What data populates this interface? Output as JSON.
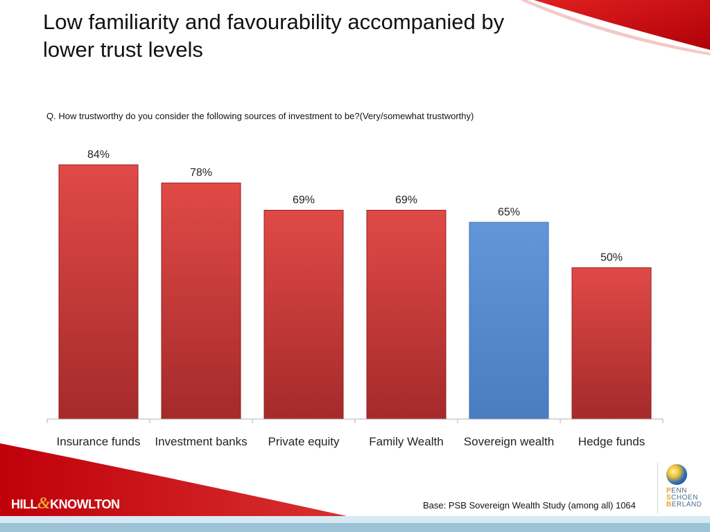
{
  "slide": {
    "title": "Low familiarity and favourability accompanied by lower trust levels",
    "question": "Q. How trustworthy do you consider the following sources of investment to be?(Very/somewhat trustworthy)",
    "base_note": "Base: PSB Sovereign Wealth Study (among all) 1064"
  },
  "logos": {
    "left": {
      "part1": "HILL",
      "amp": "&",
      "part2": "KNOWLTON"
    },
    "right": {
      "lines": [
        {
          "initial": "P",
          "rest": "ENN"
        },
        {
          "initial": "S",
          "rest": "CHOEN"
        },
        {
          "initial": "B",
          "rest": "ERLAND"
        }
      ]
    }
  },
  "colors": {
    "bar_red": "#d6403e",
    "bar_red_dark": "#a52a2a",
    "bar_blue": "#5b8bd0",
    "bar_blue_dark": "#3f6fb3",
    "accent_red": "#c0000a",
    "footer_band": "#9dc3d8"
  },
  "chart_data": {
    "type": "bar",
    "categories": [
      "Insurance funds",
      "Investment banks",
      "Private equity",
      "Family Wealth",
      "Sovereign wealth",
      "Hedge funds"
    ],
    "values": [
      84,
      78,
      69,
      69,
      65,
      50
    ],
    "value_labels": [
      "84%",
      "78%",
      "69%",
      "69%",
      "65%",
      "50%"
    ],
    "highlight_index": 4,
    "title": "",
    "xlabel": "",
    "ylabel": "",
    "ylim": [
      0,
      100
    ],
    "grid": false,
    "legend": "none"
  }
}
